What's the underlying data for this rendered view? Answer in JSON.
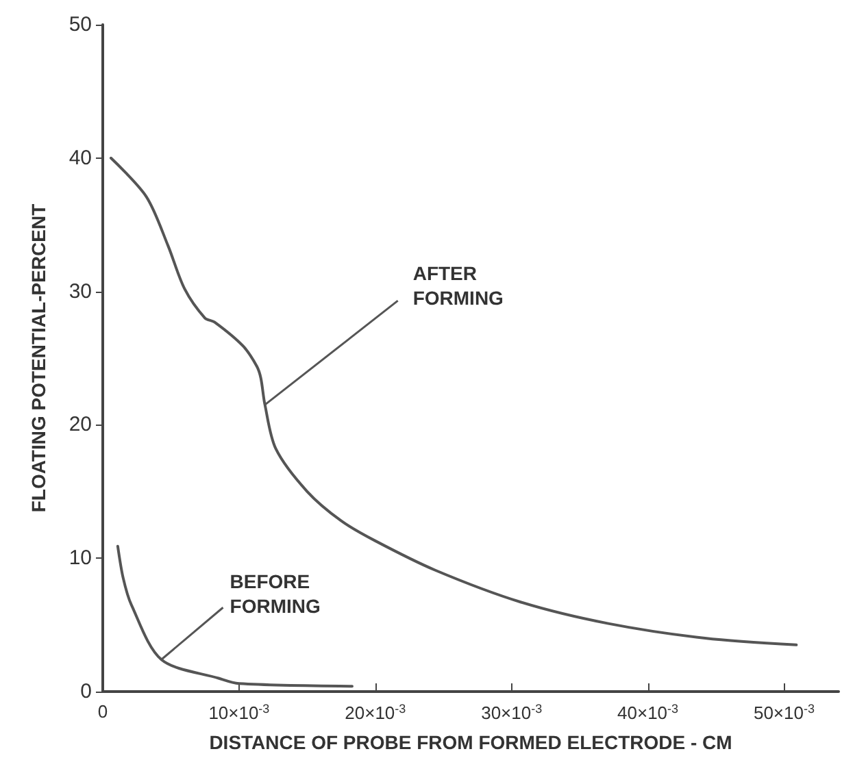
{
  "chart_data": {
    "type": "line",
    "xlabel": "DISTANCE OF PROBE FROM FORMED ELECTRODE - CM",
    "ylabel": "FLOATING POTENTIAL-PERCENT",
    "xlim": [
      0,
      0.054
    ],
    "ylim": [
      0,
      50
    ],
    "xticks": [
      0,
      {
        "value": 0.01,
        "label": "10×10$^{-3}$"
      },
      {
        "value": 0.02,
        "label": "20×10$^{-3}$"
      },
      {
        "value": 0.03,
        "label": "30×10$^{-3}$"
      },
      {
        "value": 0.04,
        "label": "40×10$^{-3}$"
      },
      {
        "value": 0.05,
        "label": "50×10$^{-3}$"
      }
    ],
    "yticks": [
      0,
      10,
      20,
      30,
      40,
      50
    ],
    "series": [
      {
        "color": "#555555",
        "x": [
          0.0006,
          0.0032,
          0.0048,
          0.006,
          0.0075,
          0.0082,
          0.0103,
          0.0113,
          0.0116,
          0.0119,
          0.0127,
          0.015,
          0.0175,
          0.02,
          0.0244,
          0.0307,
          0.0371,
          0.0442,
          0.0509
        ],
        "values": [
          40,
          37.1,
          33.4,
          30.2,
          28,
          27.7,
          25.9,
          24.4,
          23.5,
          21.5,
          18.2,
          15,
          12.8,
          11.3,
          9.1,
          6.7,
          5.1,
          4,
          3.5
        ]
      },
      {
        "color": "#555555",
        "x": [
          0.0011,
          0.0015,
          0.0021,
          0.0043,
          0.0085,
          0.01,
          0.0183
        ],
        "values": [
          10.9,
          8.5,
          6.5,
          2.4,
          1,
          0.6,
          0.4
        ]
      }
    ],
    "annotations": [
      {
        "text": "AFTER\nFORMING",
        "x": 0.0119,
        "y": 21.5
      },
      {
        "text": "BEFORE\nFORMING",
        "x": 0.0043,
        "y": 2.4
      }
    ],
    "grid": false
  }
}
